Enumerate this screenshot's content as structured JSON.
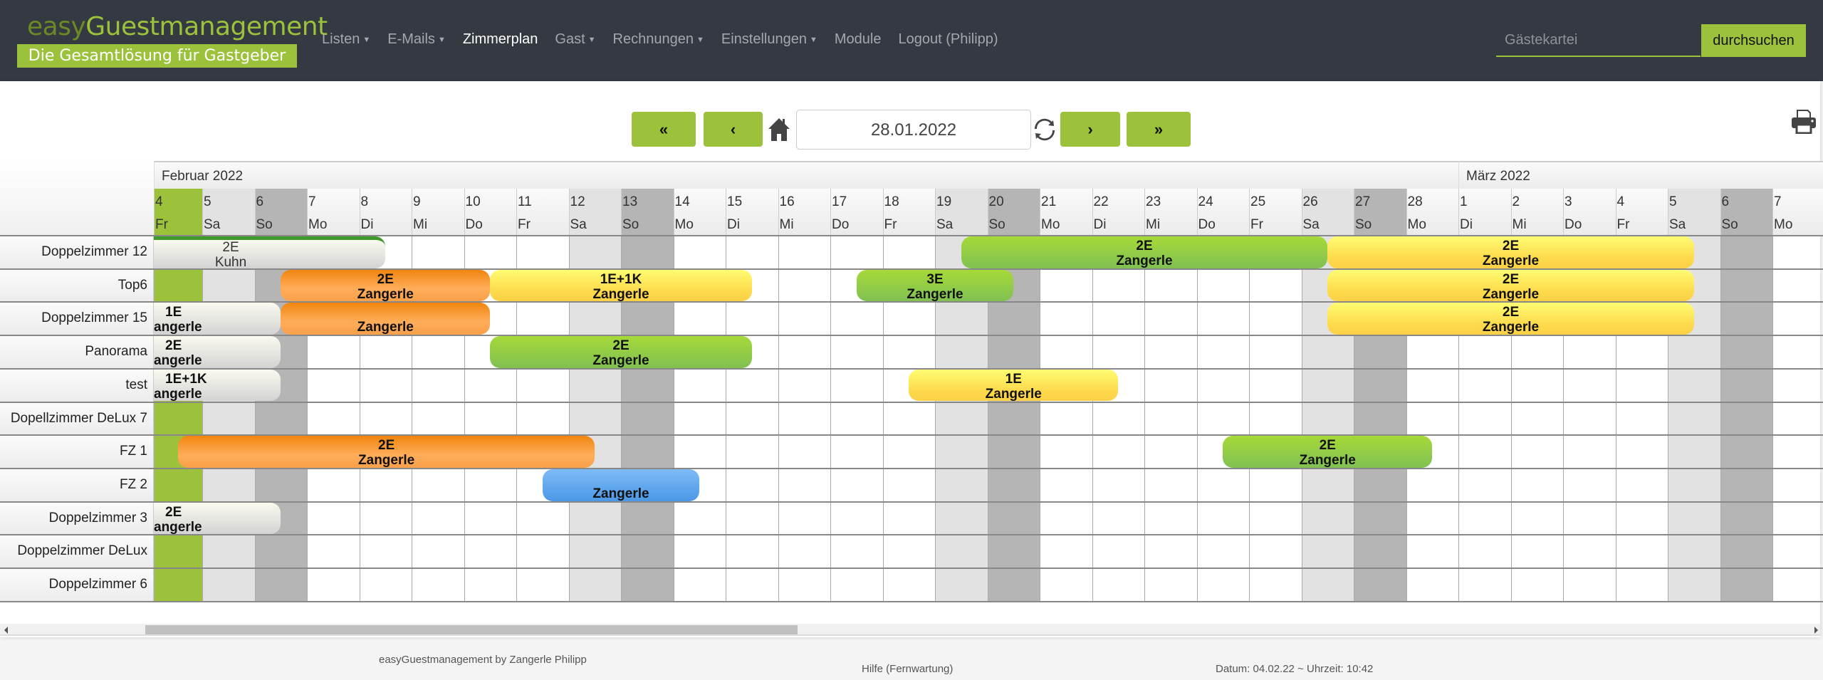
{
  "brand": {
    "name_a": "easy",
    "name_b": "Guestmanagement",
    "tagline": "Die Gesamtlösung für Gastgeber"
  },
  "menu": [
    {
      "label": "Listen",
      "dropdown": true
    },
    {
      "label": "E-Mails",
      "dropdown": true
    },
    {
      "label": "Zimmerplan",
      "dropdown": false,
      "active": true
    },
    {
      "label": "Gast",
      "dropdown": true
    },
    {
      "label": "Rechnungen",
      "dropdown": true
    },
    {
      "label": "Einstellungen",
      "dropdown": true
    },
    {
      "label": "Module",
      "dropdown": false
    },
    {
      "label": "Logout (Philipp)",
      "dropdown": false
    }
  ],
  "search": {
    "placeholder": "Gästekartei",
    "button": "durchsuchen"
  },
  "toolbar": {
    "first": "«",
    "prev": "‹",
    "next": "›",
    "last": "»",
    "date": "28.01.2022",
    "home_icon": "home-icon",
    "refresh_icon": "refresh-icon",
    "print_icon": "print-icon"
  },
  "colors": {
    "accent": "#9bc23a",
    "navbar": "#353a42",
    "saturday": "#e2e2e2",
    "sunday": "#b5b5b5"
  },
  "months": [
    {
      "label": "Februar 2022",
      "start_col": 0,
      "month": 2
    },
    {
      "label": "März 2022",
      "start_col": 25,
      "month": 3
    }
  ],
  "days": [
    {
      "d": "4",
      "wd": "Fr",
      "type": "today"
    },
    {
      "d": "5",
      "wd": "Sa",
      "type": "sa"
    },
    {
      "d": "6",
      "wd": "So",
      "type": "so"
    },
    {
      "d": "7",
      "wd": "Mo"
    },
    {
      "d": "8",
      "wd": "Di"
    },
    {
      "d": "9",
      "wd": "Mi"
    },
    {
      "d": "10",
      "wd": "Do"
    },
    {
      "d": "11",
      "wd": "Fr"
    },
    {
      "d": "12",
      "wd": "Sa",
      "type": "sa"
    },
    {
      "d": "13",
      "wd": "So",
      "type": "so"
    },
    {
      "d": "14",
      "wd": "Mo"
    },
    {
      "d": "15",
      "wd": "Di"
    },
    {
      "d": "16",
      "wd": "Mi"
    },
    {
      "d": "17",
      "wd": "Do"
    },
    {
      "d": "18",
      "wd": "Fr"
    },
    {
      "d": "19",
      "wd": "Sa",
      "type": "sa"
    },
    {
      "d": "20",
      "wd": "So",
      "type": "so"
    },
    {
      "d": "21",
      "wd": "Mo"
    },
    {
      "d": "22",
      "wd": "Di"
    },
    {
      "d": "23",
      "wd": "Mi"
    },
    {
      "d": "24",
      "wd": "Do"
    },
    {
      "d": "25",
      "wd": "Fr"
    },
    {
      "d": "26",
      "wd": "Sa",
      "type": "sa"
    },
    {
      "d": "27",
      "wd": "So",
      "type": "so"
    },
    {
      "d": "28",
      "wd": "Mo"
    },
    {
      "d": "1",
      "wd": "Di"
    },
    {
      "d": "2",
      "wd": "Mi"
    },
    {
      "d": "3",
      "wd": "Do"
    },
    {
      "d": "4",
      "wd": "Fr"
    },
    {
      "d": "5",
      "wd": "Sa",
      "type": "sa"
    },
    {
      "d": "6",
      "wd": "So",
      "type": "so"
    },
    {
      "d": "7",
      "wd": "Mo"
    }
  ],
  "rooms": [
    "Doppelzimmer 12",
    "Top6",
    "Doppelzimmer 15",
    "Panorama",
    "test",
    "Dopellzimmer DeLux 7",
    "FZ 1",
    "FZ 2",
    "Doppelzimmer 3",
    "Doppelzimmer DeLux",
    "Doppelzimmer 6"
  ],
  "bookings": [
    {
      "room": 0,
      "l1": "2E",
      "l2": "Kuhn",
      "from": null,
      "to": "8.2",
      "color": "gray",
      "style": "plain"
    },
    {
      "room": 0,
      "l1": "2E",
      "l2": "Zangerle",
      "from": "19.2",
      "to": "26.2",
      "color": "green"
    },
    {
      "room": 0,
      "l1": "2E",
      "l2": "Zangerle",
      "from": "26.2",
      "to": "5.3",
      "color": "yellow"
    },
    {
      "room": 1,
      "l1": "2E",
      "l2": "Zangerle",
      "from": "6.2",
      "to": "10.2",
      "color": "orange"
    },
    {
      "room": 1,
      "l1": "1E+1K",
      "l2": "Zangerle",
      "from": "10.2",
      "to": "15.2",
      "color": "yellow"
    },
    {
      "room": 1,
      "l1": "3E",
      "l2": "Zangerle",
      "from": "17.2",
      "to": "20.2",
      "color": "green"
    },
    {
      "room": 1,
      "l1": "2E",
      "l2": "Zangerle",
      "from": "26.2",
      "to": "5.3",
      "color": "yellow"
    },
    {
      "room": 2,
      "l1": "1E",
      "l2": "angerle",
      "from": null,
      "to": "6.2",
      "color": "gray"
    },
    {
      "room": 2,
      "l1": "",
      "l2": "Zangerle",
      "from": "6.2",
      "to": "10.2",
      "color": "orange"
    },
    {
      "room": 2,
      "l1": "2E",
      "l2": "Zangerle",
      "from": "26.2",
      "to": "5.3",
      "color": "yellow"
    },
    {
      "room": 3,
      "l1": "2E",
      "l2": "angerle",
      "from": null,
      "to": "6.2",
      "color": "gray"
    },
    {
      "room": 3,
      "l1": "2E",
      "l2": "Zangerle",
      "from": "10.2",
      "to": "15.2",
      "color": "green"
    },
    {
      "room": 4,
      "l1": "1E+1K",
      "l2": "angerle",
      "from": null,
      "to": "6.2",
      "color": "gray"
    },
    {
      "room": 4,
      "l1": "1E",
      "l2": "Zangerle",
      "from": "18.2",
      "to": "22.2",
      "color": "yellow"
    },
    {
      "room": 6,
      "l1": "2E",
      "l2": "Zangerle",
      "from": "4.2",
      "to": "12.2",
      "color": "orange"
    },
    {
      "room": 6,
      "l1": "2E",
      "l2": "Zangerle",
      "from": "24.2",
      "to": "28.2",
      "color": "green"
    },
    {
      "room": 7,
      "l1": "",
      "l2": "Zangerle",
      "from": "11.2",
      "to": "14.2",
      "color": "blue"
    },
    {
      "room": 8,
      "l1": "2E",
      "l2": "angerle",
      "from": null,
      "to": "6.2",
      "color": "gray"
    }
  ],
  "footer": {
    "credit": "easyGuestmanagement by Zangerle Philipp",
    "help": "Hilfe (Fernwartung)",
    "datetime": "Datum: 04.02.22 ~ Uhrzeit: 10:42"
  }
}
